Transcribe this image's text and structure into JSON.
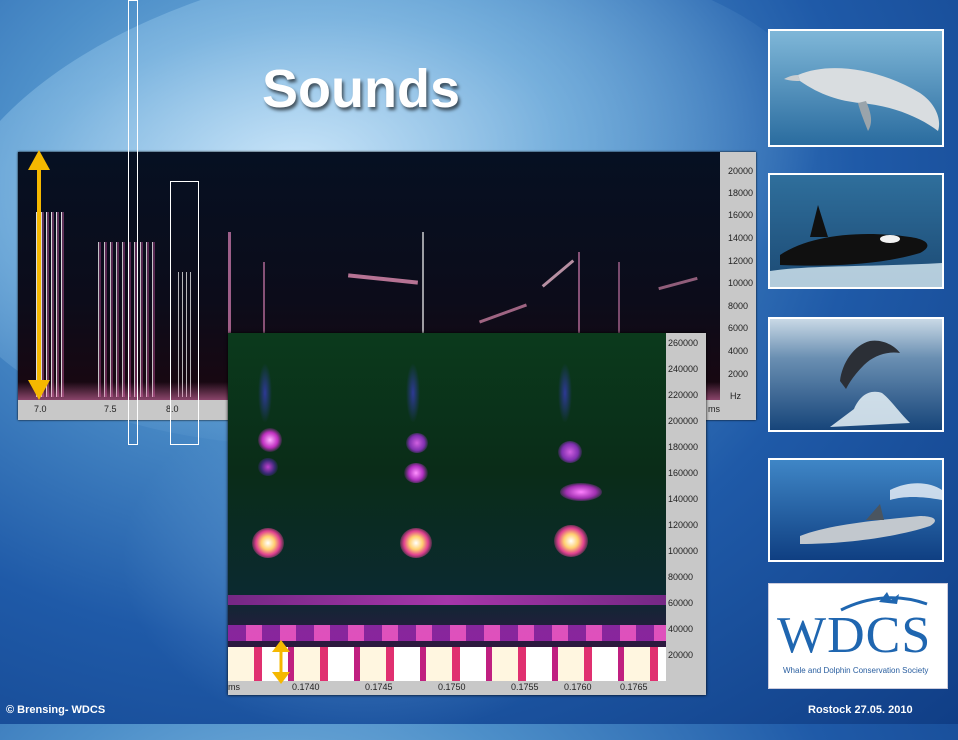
{
  "slide": {
    "title": "Sounds",
    "footer_left": "© Brensing- WDCS",
    "footer_right": "Rostock 27.05. 2010"
  },
  "spectrogram_overview": {
    "y_ticks": [
      "20000",
      "18000",
      "16000",
      "14000",
      "12000",
      "10000",
      "8000",
      "6000",
      "4000",
      "2000"
    ],
    "y_unit": "Hz",
    "x_ticks": [
      "7.0",
      "7.5",
      "8.0"
    ],
    "x_unit": "ms"
  },
  "spectrogram_zoom": {
    "y_ticks": [
      "260000",
      "240000",
      "220000",
      "200000",
      "180000",
      "160000",
      "140000",
      "120000",
      "100000",
      "80000",
      "60000",
      "40000",
      "20000"
    ],
    "x_ticks": [
      "0.1740",
      "0.1745",
      "0.1750",
      "0.1755",
      "0.1760",
      "0.1765"
    ],
    "x_unit": "ms"
  },
  "photos": [
    {
      "name": "dolphin-photo"
    },
    {
      "name": "orca-photo"
    },
    {
      "name": "leaping-dolphin-photo"
    },
    {
      "name": "swimming-dolphin-photo"
    }
  ],
  "logo": {
    "text": "WDCS",
    "subtitle": "Whale and Dolphin Conservation Society"
  },
  "colors": {
    "arrow": "#f5b800",
    "logo_blue": "#1f66b0"
  }
}
